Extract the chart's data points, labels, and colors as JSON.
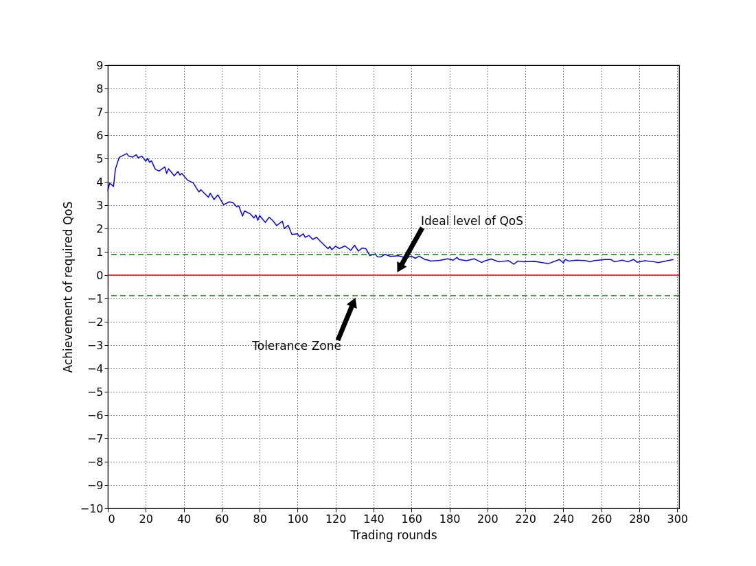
{
  "chart_data": {
    "type": "line",
    "xlabel": "Trading rounds",
    "ylabel": "Achievement of required QoS",
    "x": [
      0,
      1,
      3,
      4,
      6,
      8,
      10,
      11,
      13,
      15,
      16,
      18,
      20,
      21,
      22,
      23,
      25,
      27,
      30,
      31,
      32,
      35,
      37,
      38,
      39,
      42,
      45,
      48,
      49,
      53,
      54,
      56,
      58,
      61,
      64,
      66,
      68,
      69,
      71,
      72,
      75,
      77,
      78,
      79,
      80,
      83,
      85,
      87,
      89,
      90,
      92,
      93,
      95,
      97,
      100,
      101,
      103,
      104,
      106,
      108,
      110,
      112,
      116,
      117,
      118,
      120,
      122,
      125,
      128,
      130,
      132,
      134,
      136,
      138,
      141,
      142,
      144,
      146,
      149,
      153,
      157,
      160,
      162,
      164,
      167,
      169,
      170,
      175,
      179,
      182,
      184,
      185,
      189,
      193,
      197,
      199,
      202,
      206,
      211,
      214,
      216,
      219,
      225,
      232,
      238,
      240,
      241,
      243,
      247,
      252,
      254,
      256,
      262,
      265,
      267,
      271,
      274,
      277,
      279,
      283,
      288,
      290,
      294,
      298
    ],
    "series": [
      {
        "color": "#0000ff",
        "values": [
          3.61,
          3.95,
          3.8,
          4.54,
          5.05,
          5.13,
          5.21,
          5.1,
          5.06,
          5.16,
          5.03,
          5.1,
          4.88,
          5.01,
          4.83,
          4.9,
          4.54,
          4.46,
          4.64,
          4.36,
          4.56,
          4.26,
          4.44,
          4.29,
          4.36,
          4.07,
          3.95,
          3.56,
          3.66,
          3.34,
          3.51,
          3.24,
          3.44,
          3.02,
          3.14,
          3.1,
          2.92,
          2.97,
          2.53,
          2.75,
          2.63,
          2.45,
          2.58,
          2.35,
          2.55,
          2.26,
          2.48,
          2.33,
          2.12,
          2.19,
          2.31,
          1.99,
          2.14,
          1.74,
          1.77,
          1.65,
          1.77,
          1.62,
          1.7,
          1.53,
          1.62,
          1.45,
          1.13,
          1.23,
          1.09,
          1.24,
          1.14,
          1.25,
          1.06,
          1.28,
          1.03,
          1.16,
          1.13,
          0.84,
          0.91,
          0.79,
          0.78,
          0.89,
          0.8,
          0.83,
          0.74,
          0.81,
          0.72,
          0.81,
          0.67,
          0.64,
          0.6,
          0.63,
          0.7,
          0.64,
          0.76,
          0.67,
          0.62,
          0.7,
          0.54,
          0.62,
          0.69,
          0.57,
          0.62,
          0.47,
          0.6,
          0.57,
          0.59,
          0.49,
          0.67,
          0.52,
          0.67,
          0.6,
          0.64,
          0.62,
          0.57,
          0.62,
          0.67,
          0.67,
          0.57,
          0.64,
          0.57,
          0.67,
          0.55,
          0.62,
          0.57,
          0.54,
          0.6,
          0.67
        ]
      }
    ],
    "xlim": [
      0,
      301
    ],
    "xticks": [
      0,
      20,
      40,
      60,
      80,
      100,
      120,
      140,
      160,
      180,
      200,
      220,
      240,
      260,
      280,
      300
    ],
    "ylim": [
      -10,
      9
    ],
    "yticks": [
      -10,
      -9,
      -8,
      -7,
      -6,
      -5,
      -4,
      -3,
      -2,
      -1,
      0,
      1,
      2,
      3,
      4,
      5,
      6,
      7,
      8,
      9
    ],
    "grid": true,
    "ref_lines": [
      {
        "axis": "y",
        "value": 0,
        "color": "#ff0000",
        "line_style": "solid"
      },
      {
        "axis": "y",
        "value": 0.88,
        "color": "#008000",
        "line_style": "dashed"
      },
      {
        "axis": "y",
        "value": -0.88,
        "color": "#008000",
        "line_style": "dashed"
      }
    ],
    "annotations": [
      "Ideal level of QoS",
      "Tolerance Zone"
    ]
  }
}
